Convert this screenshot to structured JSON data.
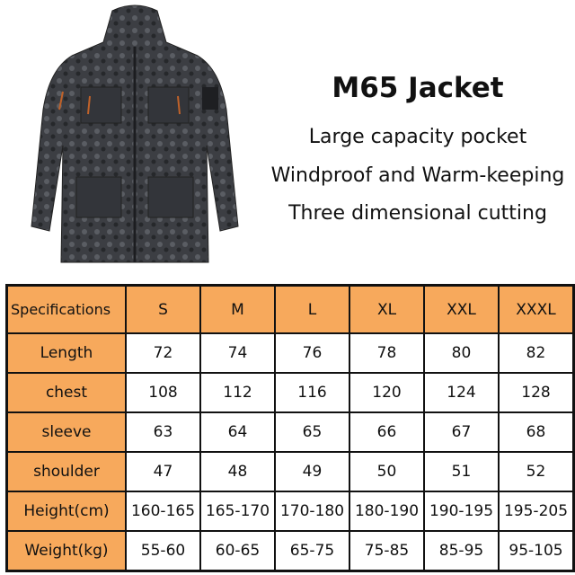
{
  "product": {
    "title": "M65 Jacket",
    "features": [
      "Large capacity pocket",
      "Windproof and Warm-keeping",
      "Three dimensional cutting"
    ]
  },
  "colors": {
    "header_fill": "#F7A95C",
    "jacket": "#3a3c40"
  },
  "size_table": {
    "corner": "Specifications",
    "sizes": [
      "S",
      "M",
      "L",
      "XL",
      "XXL",
      "XXXL"
    ],
    "rows": [
      {
        "label": "Length",
        "values": [
          "72",
          "74",
          "76",
          "78",
          "80",
          "82"
        ]
      },
      {
        "label": "chest",
        "values": [
          "108",
          "112",
          "116",
          "120",
          "124",
          "128"
        ]
      },
      {
        "label": "sleeve",
        "values": [
          "63",
          "64",
          "65",
          "66",
          "67",
          "68"
        ]
      },
      {
        "label": "shoulder",
        "values": [
          "47",
          "48",
          "49",
          "50",
          "51",
          "52"
        ]
      },
      {
        "label": "Height(cm)",
        "values": [
          "160-165",
          "165-170",
          "170-180",
          "180-190",
          "190-195",
          "195-205"
        ]
      },
      {
        "label": "Weight(kg)",
        "values": [
          "55-60",
          "60-65",
          "65-75",
          "75-85",
          "85-95",
          "95-105"
        ]
      }
    ]
  }
}
